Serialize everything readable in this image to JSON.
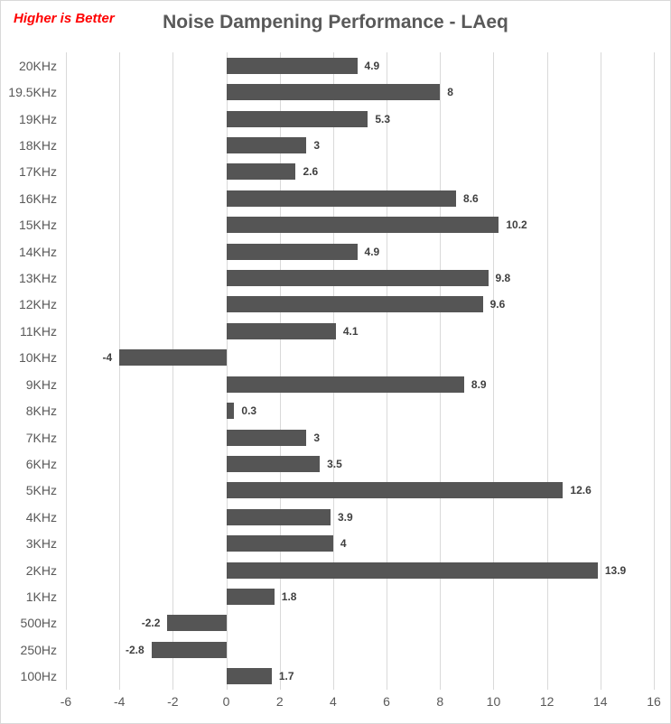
{
  "annotation": {
    "text": "Higher is Better",
    "color": "#ff0000"
  },
  "title": "Noise Dampening Performance - LAeq",
  "chart_data": {
    "type": "bar",
    "orientation": "horizontal",
    "title": "Noise Dampening Performance - LAeq",
    "xlabel": "",
    "ylabel": "",
    "categories": [
      "20KHz",
      "19.5KHz",
      "19KHz",
      "18KHz",
      "17KHz",
      "16KHz",
      "15KHz",
      "14KHz",
      "13KHz",
      "12KHz",
      "11KHz",
      "10KHz",
      "9KHz",
      "8KHz",
      "7KHz",
      "6KHz",
      "5KHz",
      "4KHz",
      "3KHz",
      "2KHz",
      "1KHz",
      "500Hz",
      "250Hz",
      "100Hz"
    ],
    "values": [
      4.9,
      8,
      5.3,
      3,
      2.6,
      8.6,
      10.2,
      4.9,
      9.8,
      9.6,
      4.1,
      -4,
      8.9,
      0.3,
      3,
      3.5,
      12.6,
      3.9,
      4,
      13.9,
      1.8,
      -2.2,
      -2.8,
      1.7
    ],
    "value_labels": [
      "4.9",
      "8",
      "5.3",
      "3",
      "2.6",
      "8.6",
      "10.2",
      "4.9",
      "9.8",
      "9.6",
      "4.1",
      "-4",
      "8.9",
      "0.3",
      "3",
      "3.5",
      "12.6",
      "3.9",
      "4",
      "13.9",
      "1.8",
      "-2.2",
      "-2.8",
      "1.7"
    ],
    "xlim": [
      -6,
      16
    ],
    "xticks": [
      -6,
      -4,
      -2,
      0,
      2,
      4,
      6,
      8,
      10,
      12,
      14,
      16
    ],
    "grid": true,
    "legend": false,
    "bar_color": "#555555",
    "gridline_color": "#d9d9d9",
    "axis_label_color": "#595959",
    "value_label_color": "#3f3f3f"
  }
}
